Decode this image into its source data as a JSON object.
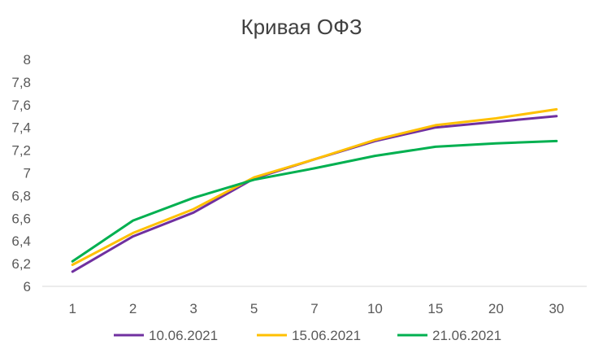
{
  "chart_data": {
    "type": "line",
    "title": "Кривая ОФЗ",
    "xlabel": "",
    "ylabel": "",
    "categories": [
      "1",
      "2",
      "3",
      "5",
      "7",
      "10",
      "15",
      "20",
      "30"
    ],
    "ylim": [
      6,
      8
    ],
    "yticks": [
      "6",
      "6,2",
      "6,4",
      "6,6",
      "6,8",
      "7",
      "7,2",
      "7,4",
      "7,6",
      "7,8",
      "8"
    ],
    "yticks_values": [
      6,
      6.2,
      6.4,
      6.6,
      6.8,
      7,
      7.2,
      7.4,
      7.6,
      7.8,
      8
    ],
    "grid": false,
    "legend_position": "bottom",
    "series": [
      {
        "name": "10.06.2021",
        "color": "#7030A0",
        "values": [
          6.13,
          6.44,
          6.65,
          6.95,
          7.12,
          7.28,
          7.4,
          7.45,
          7.5
        ]
      },
      {
        "name": "15.06.2021",
        "color": "#FFC000",
        "values": [
          6.19,
          6.47,
          6.68,
          6.96,
          7.12,
          7.29,
          7.42,
          7.48,
          7.56
        ]
      },
      {
        "name": "21.06.2021",
        "color": "#00B050",
        "values": [
          6.22,
          6.58,
          6.78,
          6.94,
          7.04,
          7.15,
          7.23,
          7.26,
          7.28
        ]
      }
    ]
  }
}
